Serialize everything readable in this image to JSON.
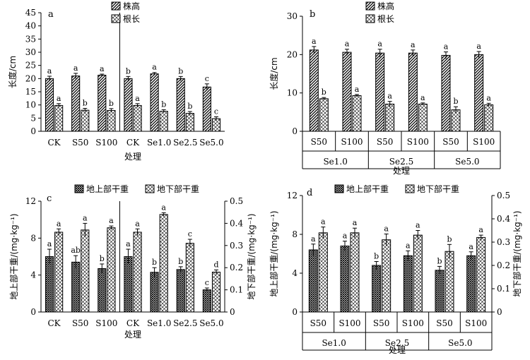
{
  "colors": {
    "ink": "#000000",
    "background": "#ffffff"
  },
  "chart_data": [
    {
      "panel": "a",
      "type": "bar",
      "categories": [
        "CK",
        "S50",
        "S100",
        "CK",
        "Se1.0",
        "Se2.5",
        "Se5.0"
      ],
      "divider_after": 2,
      "xlabel": "处理",
      "ylabel": "长度/cm",
      "ylim": [
        0,
        45
      ],
      "yticks": [
        0,
        5,
        10,
        15,
        20,
        25,
        30,
        35,
        40,
        45
      ],
      "legend": "top-center",
      "series": [
        {
          "name": "株高",
          "pattern": "diagonal",
          "values": [
            20.0,
            21.0,
            21.3,
            20.0,
            21.8,
            20.0,
            16.8
          ],
          "errors": [
            0.9,
            1.0,
            0.4,
            0.8,
            0.5,
            0.8,
            1.2
          ],
          "letters": [
            "a",
            "a",
            "a",
            "b",
            "a",
            "b",
            "c"
          ]
        },
        {
          "name": "根长",
          "pattern": "cross",
          "values": [
            9.8,
            8.0,
            7.9,
            9.8,
            7.6,
            6.8,
            4.8
          ],
          "errors": [
            0.7,
            0.7,
            0.7,
            0.7,
            0.6,
            0.7,
            0.7
          ],
          "letters": [
            "a",
            "b",
            "b",
            "a",
            "b",
            "b",
            "c"
          ]
        }
      ]
    },
    {
      "panel": "b",
      "type": "bar",
      "categories": [
        "S50",
        "S100",
        "S50",
        "S100",
        "S50",
        "S100"
      ],
      "groups": [
        "Se1.0",
        "Se2.5",
        "Se5.0"
      ],
      "xlabel": "处理",
      "ylabel": "长度/cm",
      "ylim": [
        0,
        30
      ],
      "yticks": [
        0,
        10,
        20,
        30
      ],
      "legend": "top-center",
      "series": [
        {
          "name": "株高",
          "pattern": "diagonal",
          "values": [
            21.2,
            20.6,
            20.4,
            20.4,
            19.8,
            20.0
          ],
          "errors": [
            0.9,
            0.8,
            1.0,
            0.8,
            0.9,
            0.8
          ],
          "letters": [
            "a",
            "a",
            "a",
            "a",
            "a",
            "a"
          ]
        },
        {
          "name": "根长",
          "pattern": "cross",
          "values": [
            8.5,
            9.3,
            7.1,
            7.1,
            5.6,
            6.9
          ],
          "errors": [
            0.3,
            0.3,
            0.7,
            0.3,
            0.8,
            0.4
          ],
          "letters": [
            "b",
            "a",
            "a",
            "a",
            "b",
            "a"
          ]
        }
      ]
    },
    {
      "panel": "c",
      "type": "bar",
      "categories": [
        "CK",
        "S50",
        "S100",
        "CK",
        "Se1.0",
        "Se2.5",
        "Se5.0"
      ],
      "divider_after": 2,
      "xlabel": "处理",
      "ylabel": "地上部干重/(mg·kg⁻¹)",
      "y2label": "地下部干重/(mg·kg⁻¹)",
      "ylim": [
        0,
        12
      ],
      "yticks": [
        0,
        4,
        8,
        12
      ],
      "y2lim": [
        0,
        0.5
      ],
      "y2ticks": [
        "0",
        "0.1",
        "0.2",
        "0.3",
        "0.4",
        "0.5"
      ],
      "legend": "top-center",
      "series": [
        {
          "name": "地上部干重",
          "pattern": "crosshatch",
          "axis": "left",
          "values": [
            6.0,
            5.4,
            4.7,
            6.0,
            4.3,
            4.6,
            2.4
          ],
          "errors": [
            0.8,
            0.7,
            0.5,
            0.8,
            0.5,
            0.3,
            0.2
          ],
          "letters": [
            "a",
            "ab",
            "b",
            "a",
            "b",
            "b",
            "c"
          ]
        },
        {
          "name": "地下部干重",
          "pattern": "cross",
          "axis": "right",
          "values": [
            0.36,
            0.37,
            0.38,
            0.36,
            0.44,
            0.31,
            0.18
          ],
          "errors": [
            0.015,
            0.03,
            0.008,
            0.015,
            0.008,
            0.018,
            0.01
          ],
          "letters": [
            "a",
            "a",
            "a",
            "a",
            "a",
            "c",
            "d"
          ]
        }
      ]
    },
    {
      "panel": "d",
      "type": "bar",
      "categories": [
        "S50",
        "S100",
        "S50",
        "S100",
        "S50",
        "S100"
      ],
      "groups": [
        "Se1.0",
        "Se2.5",
        "Se5.0"
      ],
      "xlabel": "处理",
      "ylabel": "地上部干重/(mg·kg⁻¹)",
      "y2label": "地下部干重/(mg·kg⁻¹)",
      "ylim": [
        0,
        12
      ],
      "yticks": [
        0,
        4,
        8,
        12
      ],
      "y2lim": [
        0,
        0.5
      ],
      "y2ticks": [
        "0",
        "0.1",
        "0.2",
        "0.3",
        "0.4",
        "0.5"
      ],
      "legend": "top-center",
      "series": [
        {
          "name": "地上部干重",
          "pattern": "crosshatch",
          "axis": "left",
          "values": [
            6.4,
            6.8,
            4.8,
            5.8,
            4.3,
            5.8
          ],
          "errors": [
            0.6,
            0.5,
            0.4,
            0.5,
            0.4,
            0.4
          ],
          "letters": [
            "a",
            "a",
            "b",
            "a",
            "b",
            "a"
          ]
        },
        {
          "name": "地下部干重",
          "pattern": "cross",
          "axis": "right",
          "values": [
            0.34,
            0.34,
            0.31,
            0.33,
            0.26,
            0.32
          ],
          "errors": [
            0.025,
            0.02,
            0.025,
            0.02,
            0.03,
            0.01
          ],
          "letters": [
            "a",
            "a",
            "a",
            "a",
            "b",
            "a"
          ]
        }
      ]
    }
  ]
}
